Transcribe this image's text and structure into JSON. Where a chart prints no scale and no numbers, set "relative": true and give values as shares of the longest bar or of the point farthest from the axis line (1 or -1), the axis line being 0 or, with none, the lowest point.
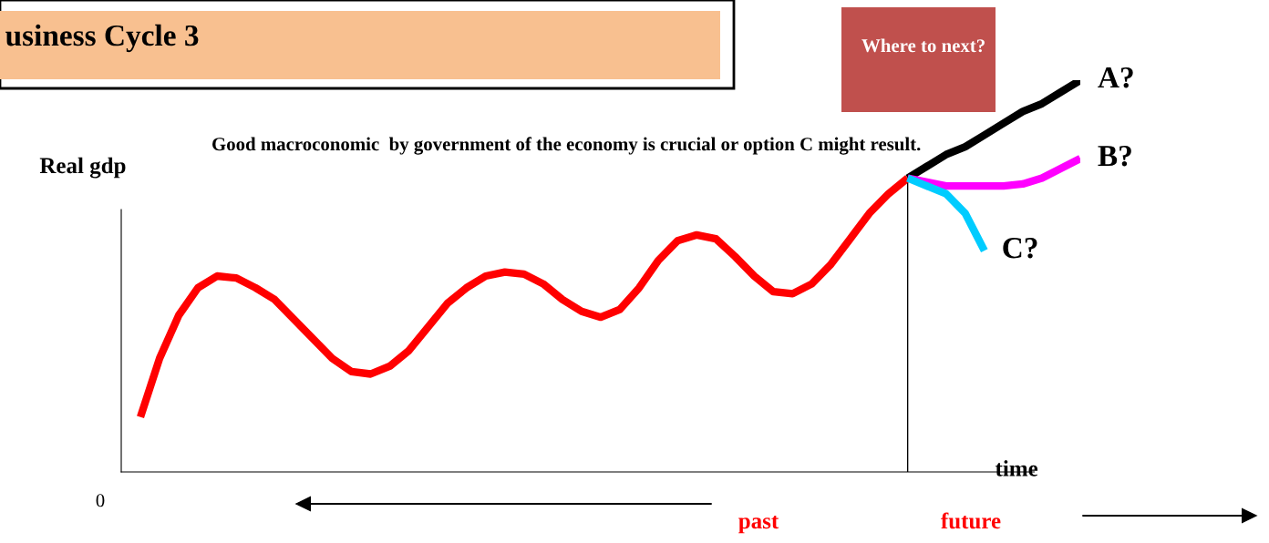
{
  "chart_data": {
    "type": "line",
    "title": "usiness Cycle 3",
    "xlabel": "time",
    "ylabel": "Real gdp",
    "relative": true,
    "legend": false,
    "marker": "none",
    "line_style": "solid",
    "categories": [
      null,
      null,
      null,
      null,
      null,
      null,
      null,
      null,
      null,
      null,
      null,
      null,
      null,
      null,
      null,
      null,
      null,
      null,
      null,
      null,
      null,
      null,
      null,
      null,
      null,
      null,
      null,
      null,
      null,
      null,
      null,
      null,
      null,
      null,
      null,
      null,
      null,
      null,
      null,
      null,
      null,
      null,
      null,
      null,
      null,
      null,
      null,
      null,
      null,
      null
    ],
    "series": [
      {
        "color": "#ff0000",
        "values": [
          0.14,
          0.29,
          0.4,
          0.47,
          0.5,
          0.495,
          0.47,
          0.44,
          0.39,
          0.34,
          0.29,
          0.256,
          0.25,
          0.27,
          0.31,
          0.37,
          0.43,
          0.47,
          0.5,
          0.51,
          0.505,
          0.48,
          0.44,
          0.41,
          0.395,
          0.415,
          0.47,
          0.54,
          0.59,
          0.605,
          0.595,
          0.55,
          0.5,
          0.46,
          0.455,
          0.48,
          0.53,
          0.595,
          0.66,
          0.71,
          0.75,
          null,
          null,
          null,
          null,
          null,
          null,
          null,
          null,
          null
        ]
      },
      {
        "name": "A?",
        "color": "#000000",
        "values": [
          null,
          null,
          null,
          null,
          null,
          null,
          null,
          null,
          null,
          null,
          null,
          null,
          null,
          null,
          null,
          null,
          null,
          null,
          null,
          null,
          null,
          null,
          null,
          null,
          null,
          null,
          null,
          null,
          null,
          null,
          null,
          null,
          null,
          null,
          null,
          null,
          null,
          null,
          null,
          null,
          0.75,
          0.78,
          0.81,
          0.83,
          0.86,
          0.89,
          0.92,
          0.94,
          0.97,
          1.0
        ]
      },
      {
        "name": "B?",
        "color": "#ff00ff",
        "values": [
          null,
          null,
          null,
          null,
          null,
          null,
          null,
          null,
          null,
          null,
          null,
          null,
          null,
          null,
          null,
          null,
          null,
          null,
          null,
          null,
          null,
          null,
          null,
          null,
          null,
          null,
          null,
          null,
          null,
          null,
          null,
          null,
          null,
          null,
          null,
          null,
          null,
          null,
          null,
          null,
          0.75,
          0.74,
          0.73,
          0.73,
          0.73,
          0.73,
          0.735,
          0.75,
          0.775,
          0.8
        ]
      },
      {
        "name": "C?",
        "color": "#00ccff",
        "values": [
          null,
          null,
          null,
          null,
          null,
          null,
          null,
          null,
          null,
          null,
          null,
          null,
          null,
          null,
          null,
          null,
          null,
          null,
          null,
          null,
          null,
          null,
          null,
          null,
          null,
          null,
          null,
          null,
          null,
          null,
          null,
          null,
          null,
          null,
          null,
          null,
          null,
          null,
          null,
          null,
          0.75,
          0.73,
          0.71,
          0.66,
          0.565,
          null,
          null,
          null,
          null,
          null
        ]
      }
    ],
    "annotations": [
      "Where to next?",
      "Good macroconomic  by government of the economy is crucial or option C might result.",
      "0",
      "past",
      "future"
    ]
  }
}
